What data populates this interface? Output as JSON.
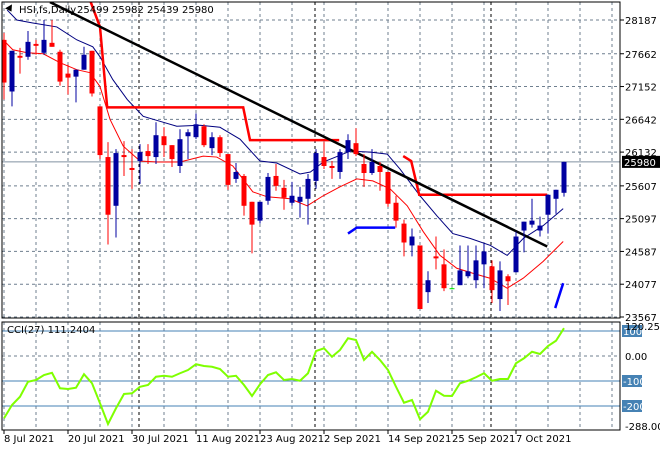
{
  "header": {
    "symbol_timeframe": "HSI,fs,Daily",
    "ohlc": "25499 25982 25439 25980",
    "icon": "triangle-down-icon"
  },
  "colors": {
    "bull": "#0000a0",
    "bear": "#ff0000",
    "doji": "#00e000",
    "ma_fast": "#ff0000",
    "ma_slow": "#000080",
    "stop_red": "#ff0000",
    "stop_blue": "#0000ff",
    "trendline": "#000000",
    "cci": "#7fff00",
    "level": "#4682b4",
    "grid": "#6f7f8f"
  },
  "chart_data": [
    {
      "type": "candlestick",
      "title": "HSI,fs,Daily",
      "ylim": [
        23567,
        28187
      ],
      "y_ticks": [
        "28187",
        "27662",
        "27152",
        "26642",
        "26132",
        "25607",
        "25097",
        "24587",
        "24077",
        "23567"
      ],
      "x_tick_labels": [
        {
          "bar": 1,
          "label": "8 Jul 2021"
        },
        {
          "bar": 9,
          "label": "20 Jul 2021"
        },
        {
          "bar": 17,
          "label": "30 Jul 2021"
        },
        {
          "bar": 25,
          "label": "11 Aug 2021"
        },
        {
          "bar": 33,
          "label": "23 Aug 2021"
        },
        {
          "bar": 41,
          "label": "2 Sep 2021"
        },
        {
          "bar": 49,
          "label": "14 Sep 2021"
        },
        {
          "bar": 57,
          "label": "25 Sep 2021"
        },
        {
          "bar": 65,
          "label": "7 Oct 2021"
        }
      ],
      "period_separators_bar": [
        18,
        40,
        62
      ],
      "grid": true,
      "current_price": "25980",
      "candles_ohlc": [
        [
          27878,
          27986,
          26951,
          27214
        ],
        [
          27075,
          27708,
          26843,
          27708
        ],
        [
          27630,
          27754,
          27353,
          27600
        ],
        [
          27615,
          28015,
          27569,
          27847
        ],
        [
          27815,
          27878,
          27646,
          27785
        ],
        [
          27677,
          28187,
          27646,
          27878
        ],
        [
          27832,
          28187,
          27770,
          27770
        ],
        [
          27693,
          27724,
          27167,
          27229
        ],
        [
          27353,
          27492,
          27028,
          27291
        ],
        [
          27306,
          27414,
          26905,
          27414
        ],
        [
          27414,
          27770,
          27414,
          27646
        ],
        [
          27708,
          27708,
          26997,
          27044
        ],
        [
          26843,
          26843,
          26024,
          26086
        ],
        [
          26055,
          26287,
          24695,
          25158
        ],
        [
          25297,
          26179,
          24803,
          26117
        ],
        [
          26086,
          26302,
          25761,
          26055
        ],
        [
          25885,
          26179,
          25561,
          25854
        ],
        [
          25993,
          26256,
          25638,
          26132
        ],
        [
          26148,
          26256,
          25947,
          26070
        ],
        [
          26055,
          26596,
          25947,
          26395
        ],
        [
          26379,
          26518,
          26055,
          26240
        ],
        [
          26240,
          26240,
          25900,
          26024
        ],
        [
          25916,
          26488,
          25807,
          26333
        ],
        [
          26379,
          26488,
          26024,
          26441
        ],
        [
          26364,
          26735,
          26333,
          26565
        ],
        [
          26534,
          26565,
          26209,
          26240
        ],
        [
          26194,
          26441,
          26086,
          26364
        ],
        [
          26364,
          26395,
          26055,
          26117
        ],
        [
          26101,
          26101,
          25546,
          25622
        ],
        [
          25715,
          25962,
          25653,
          25823
        ],
        [
          25761,
          25792,
          25143,
          25297
        ],
        [
          25359,
          25359,
          24556,
          25004
        ],
        [
          25066,
          25359,
          25020,
          25359
        ],
        [
          25375,
          25807,
          25313,
          25746
        ],
        [
          25761,
          25947,
          25530,
          25607
        ],
        [
          25576,
          25700,
          25235,
          25422
        ],
        [
          25344,
          25669,
          25297,
          25453
        ],
        [
          25359,
          25592,
          25112,
          25437
        ],
        [
          25406,
          25792,
          25004,
          25715
        ],
        [
          25684,
          26179,
          25561,
          26117
        ],
        [
          26055,
          26287,
          25869,
          25916
        ],
        [
          25916,
          25993,
          25715,
          25885
        ],
        [
          25823,
          26179,
          25715,
          26132
        ],
        [
          26132,
          26410,
          26024,
          26318
        ],
        [
          26271,
          26503,
          26070,
          26101
        ],
        [
          25947,
          26101,
          25592,
          25807
        ],
        [
          25807,
          26179,
          25777,
          25978
        ],
        [
          25916,
          25978,
          25530,
          25823
        ],
        [
          25823,
          25823,
          25282,
          25329
        ],
        [
          25344,
          25453,
          24958,
          25066
        ],
        [
          25020,
          25081,
          24510,
          24726
        ],
        [
          24680,
          24943,
          24510,
          24819
        ],
        [
          24680,
          24680,
          23691,
          23691
        ],
        [
          23954,
          24278,
          23784,
          24139
        ],
        [
          24510,
          24819,
          24308,
          24479
        ],
        [
          24386,
          24618,
          23969,
          24015
        ],
        [
          24015,
          24030,
          24000,
          24015
        ],
        [
          24062,
          24680,
          24062,
          24292
        ],
        [
          24201,
          24680,
          24170,
          24278
        ],
        [
          24139,
          24680,
          24015,
          24448
        ],
        [
          24386,
          24711,
          24015,
          24587
        ],
        [
          24355,
          24448,
          23784,
          23985
        ],
        [
          23846,
          24432,
          23660,
          24292
        ],
        [
          24201,
          24232,
          23753,
          24123
        ],
        [
          24263,
          24896,
          24263,
          24819
        ],
        [
          24912,
          25050,
          24572,
          25050
        ],
        [
          25004,
          25406,
          24958,
          25066
        ],
        [
          24912,
          25128,
          24819,
          24989
        ],
        [
          25158,
          25468,
          24865,
          25468
        ],
        [
          25406,
          25546,
          25174,
          25546
        ],
        [
          25499,
          25982,
          25439,
          25980
        ]
      ],
      "overlays": [
        {
          "kind": "ma_slow",
          "points": [
            [
              1.4,
              28342
            ],
            [
              2.6,
              28187
            ],
            [
              4.6,
              28141
            ],
            [
              7.6,
              28079
            ],
            [
              10.1,
              27878
            ],
            [
              12.1,
              27770
            ],
            [
              13,
              27615
            ],
            [
              14.6,
              27260
            ],
            [
              16.4,
              26951
            ],
            [
              18.4,
              26688
            ],
            [
              20.5,
              26611
            ],
            [
              22.6,
              26534
            ],
            [
              25.5,
              26549
            ],
            [
              28,
              26518
            ],
            [
              30.5,
              26333
            ],
            [
              33,
              25993
            ],
            [
              35.1,
              25962
            ],
            [
              38,
              25792
            ],
            [
              39.3,
              25823
            ],
            [
              40.9,
              25978
            ],
            [
              44.3,
              26148
            ],
            [
              46.8,
              26132
            ],
            [
              48.9,
              26101
            ],
            [
              50.5,
              25869
            ],
            [
              53,
              25453
            ],
            [
              55.1,
              25143
            ],
            [
              57.1,
              24865
            ],
            [
              59.3,
              24788
            ],
            [
              61.8,
              24680
            ],
            [
              63.9,
              24525
            ],
            [
              65.9,
              24788
            ],
            [
              68.4,
              24989
            ],
            [
              70.9,
              25252
            ]
          ]
        },
        {
          "kind": "ma_fast",
          "points": [
            [
              0.9,
              27878
            ],
            [
              2.1,
              27724
            ],
            [
              3.9,
              27677
            ],
            [
              5.9,
              27662
            ],
            [
              8,
              27523
            ],
            [
              10.1,
              27414
            ],
            [
              11.75,
              27368
            ],
            [
              13,
              27152
            ],
            [
              14.25,
              26642
            ],
            [
              15.9,
              26225
            ],
            [
              18,
              25993
            ],
            [
              20.1,
              25978
            ],
            [
              23,
              25978
            ],
            [
              25.9,
              26070
            ],
            [
              27.6,
              26055
            ],
            [
              29.6,
              25916
            ],
            [
              32.1,
              25514
            ],
            [
              33.9,
              25437
            ],
            [
              36.75,
              25406
            ],
            [
              38.9,
              25297
            ],
            [
              40.9,
              25453
            ],
            [
              43,
              25592
            ],
            [
              45.1,
              25715
            ],
            [
              47.1,
              25684
            ],
            [
              49.25,
              25561
            ],
            [
              51.4,
              25297
            ],
            [
              53.4,
              24896
            ],
            [
              55.5,
              24525
            ],
            [
              57.6,
              24325
            ],
            [
              59.6,
              24247
            ],
            [
              61.75,
              24170
            ],
            [
              63.9,
              24015
            ],
            [
              65.9,
              24170
            ],
            [
              68.4,
              24433
            ],
            [
              70.9,
              24742
            ]
          ]
        },
        {
          "kind": "stop_red",
          "points": [
            [
              11.75,
              28496
            ],
            [
              13,
              28079
            ],
            [
              13.9,
              26827
            ],
            [
              30.9,
              26827
            ],
            [
              31.75,
              26318
            ],
            [
              42.9,
              26318
            ]
          ]
        },
        {
          "kind": "stop_red",
          "points": [
            [
              50.9,
              26070
            ],
            [
              51.9,
              25993
            ],
            [
              52.9,
              25468
            ],
            [
              68.9,
              25468
            ]
          ]
        },
        {
          "kind": "stop_blue",
          "points": [
            [
              44,
              24865
            ],
            [
              45.1,
              24958
            ],
            [
              49.9,
              24958
            ]
          ]
        },
        {
          "kind": "stop_blue",
          "points": [
            [
              69.9,
              23706
            ],
            [
              70.9,
              24093
            ]
          ]
        },
        {
          "kind": "trendline",
          "points": [
            [
              6.75,
              28465
            ],
            [
              68.9,
              24664
            ]
          ]
        }
      ]
    },
    {
      "type": "line",
      "title": "CCI(27) 111.2404",
      "ylim": [
        -288.008,
        120.2523
      ],
      "y_ticks": [
        "120.2523",
        "0.00",
        "-288.008"
      ],
      "levels": [
        {
          "value": 100,
          "label": "100"
        },
        {
          "value": -100,
          "label": "-100"
        },
        {
          "value": -200,
          "label": "-200"
        }
      ],
      "values": [
        -249,
        -196,
        -163,
        -103,
        -96,
        -76,
        -67,
        -129,
        -132,
        -127,
        -73,
        -109,
        -189,
        -272,
        -209,
        -152,
        -149,
        -123,
        -116,
        -83,
        -79,
        -83,
        -69,
        -56,
        -33,
        -40,
        -43,
        -52,
        -83,
        -79,
        -116,
        -160,
        -113,
        -76,
        -65,
        -96,
        -92,
        -99,
        -69,
        20,
        31,
        -3,
        24,
        71,
        64,
        -16,
        17,
        -16,
        -56,
        -123,
        -187,
        -176,
        -253,
        -223,
        -139,
        -159,
        -160,
        -109,
        -99,
        -85,
        -69,
        -99,
        -92,
        -92,
        -29,
        -9,
        17,
        8,
        40,
        61,
        111.24
      ]
    }
  ]
}
